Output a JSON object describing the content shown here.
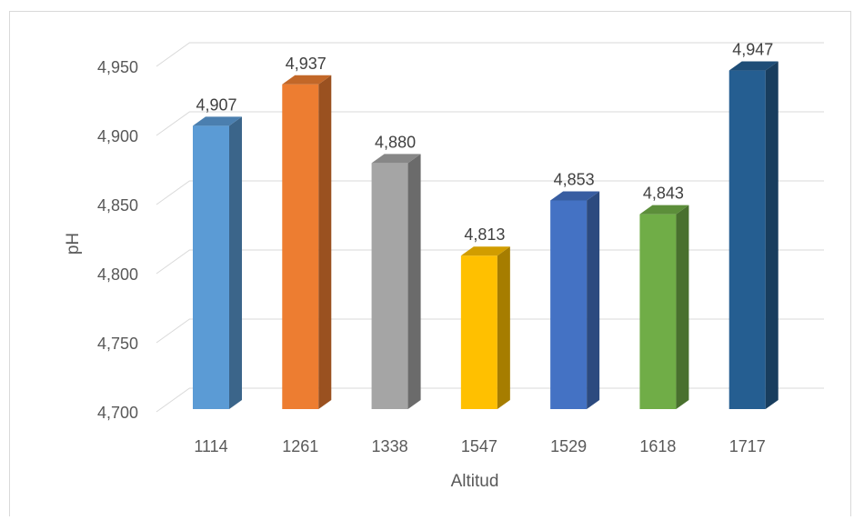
{
  "chart_data": {
    "type": "bar",
    "categories": [
      "1114",
      "1261",
      "1338",
      "1547",
      "1529",
      "1618",
      "1717"
    ],
    "values": [
      4.907,
      4.937,
      4.88,
      4.813,
      4.853,
      4.843,
      4.947
    ],
    "value_labels": [
      "4,907",
      "4,937",
      "4,880",
      "4,813",
      "4,853",
      "4,843",
      "4,947"
    ],
    "colors": [
      "#5b9bd5",
      "#ed7d31",
      "#a5a5a5",
      "#ffc000",
      "#4472c4",
      "#70ad47",
      "#255e91"
    ],
    "xlabel": "Altitud",
    "ylabel": "pH",
    "ylim": [
      4.7,
      4.95
    ],
    "yticks": [
      4.7,
      4.75,
      4.8,
      4.85,
      4.9,
      4.95
    ],
    "ytick_labels": [
      "4,700",
      "4,750",
      "4,800",
      "4,850",
      "4,900",
      "4,950"
    ],
    "grid": true,
    "legend": "none",
    "style": "3d-column"
  }
}
